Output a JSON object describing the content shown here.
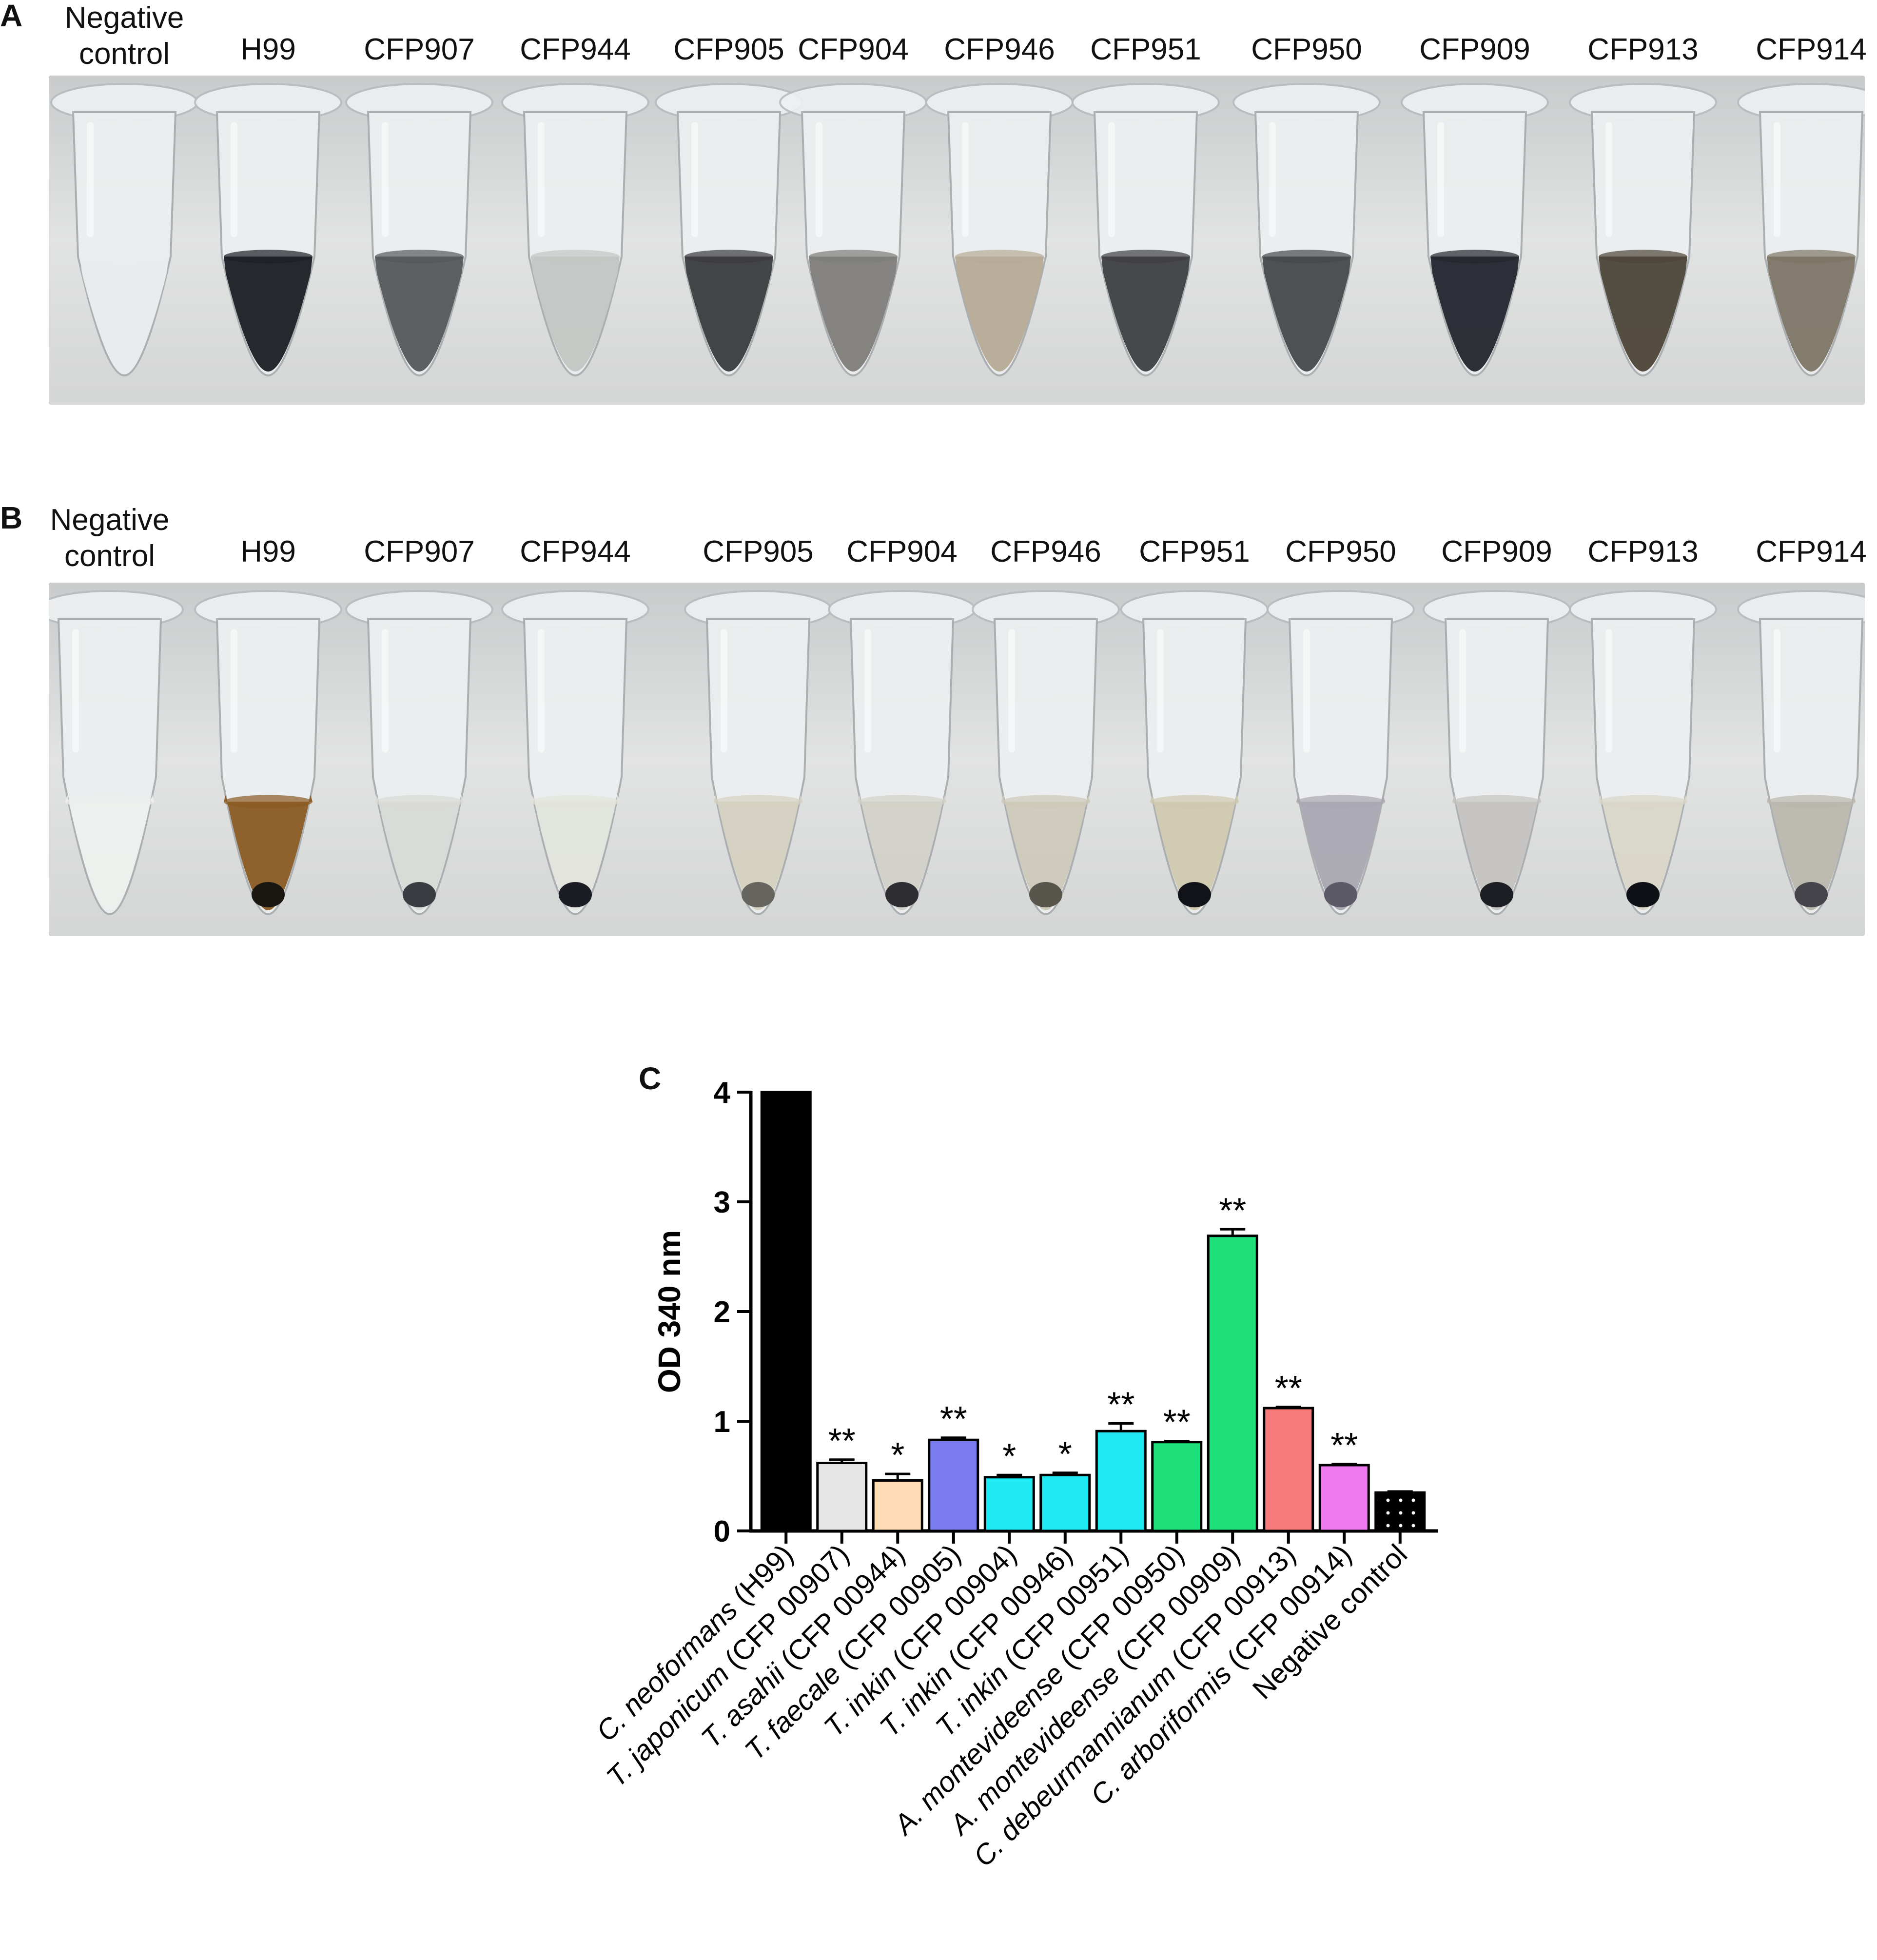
{
  "panels": [
    {
      "letter": "A",
      "lanes": [
        "Negative\ncontrol",
        "H99",
        "CFP907",
        "CFP944",
        "CFP905",
        "CFP904",
        "CFP946",
        "CFP951",
        "CFP950",
        "CFP909",
        "CFP913",
        "CFP914"
      ],
      "tube_liquid_colors": [
        "#e9ecee",
        "#1b1e23",
        "#55575a",
        "#c4c6c4",
        "#3a3b3c",
        "#7e7d7a",
        "#b5ab95",
        "#3e3f41",
        "#46484b",
        "#22252c",
        "#4c4537",
        "#7d7565"
      ]
    },
    {
      "letter": "B",
      "lanes": [
        "Negative\ncontrol",
        "H99",
        "CFP907",
        "CFP944",
        "CFP905",
        "CFP904",
        "CFP946",
        "CFP951",
        "CFP950",
        "CFP909",
        "CFP913",
        "CFP914"
      ],
      "tube_liquid_colors": [
        "#eef0ee",
        "#8a5a22",
        "#d8dad6",
        "#e2e4dc",
        "#d5d1c0",
        "#d2d1c8",
        "#cdc9b9",
        "#cfc9ae",
        "#a9a7b0",
        "#c4c3c0",
        "#d9d6c8",
        "#b9b7ad"
      ],
      "pellet_colors": [
        "",
        "#1a1712",
        "#3a3c42",
        "#1c1d24",
        "#66645e",
        "#2e2e32",
        "#58564c",
        "#121318",
        "#5d5a68",
        "#1d1e24",
        "#101116",
        "#45444a"
      ]
    }
  ],
  "chart_data": {
    "panel_letter": "C",
    "type": "bar",
    "ylabel": "OD 340 nm",
    "ylim": [
      0,
      4
    ],
    "yticks": [
      "0",
      "1",
      "2",
      "3",
      "4"
    ],
    "categories": [
      {
        "italic": "C. neoformans",
        "rest": " (H99)"
      },
      {
        "italic": "T. japonicum",
        "rest": " (CFP 00907)"
      },
      {
        "italic": "T. asahii",
        "rest": " (CFP 00944)"
      },
      {
        "italic": "T. faecale",
        "rest": " (CFP 00905)"
      },
      {
        "italic": "T. inkin",
        "rest": " (CFP 00904)"
      },
      {
        "italic": "T. inkin",
        "rest": " (CFP 00946)"
      },
      {
        "italic": "T. inkin",
        "rest": " (CFP 00951)"
      },
      {
        "italic": "A. montevideense",
        "rest": " (CFP 00950)"
      },
      {
        "italic": "A. montevideense",
        "rest": " (CFP 00909)"
      },
      {
        "italic": "C. debeurmannianum",
        "rest": " (CFP 00913)"
      },
      {
        "italic": "C. arboriformis",
        "rest": " (CFP 00914)"
      },
      {
        "italic": "",
        "rest": "Negative control"
      }
    ],
    "values": [
      4.0,
      0.62,
      0.46,
      0.83,
      0.49,
      0.51,
      0.91,
      0.81,
      2.69,
      1.12,
      0.6,
      0.35
    ],
    "errors": [
      0,
      0.03,
      0.06,
      0.02,
      0.02,
      0.02,
      0.07,
      0.01,
      0.06,
      0.01,
      0.01,
      0.01
    ],
    "significance": [
      "",
      "**",
      "*",
      "**",
      "*",
      "*",
      "**",
      "**",
      "**",
      "**",
      "**",
      ""
    ],
    "colors": [
      "#000000",
      "#e6e6e6",
      "#fddbb4",
      "#7b7bf0",
      "#1ee8f2",
      "#1ee8f2",
      "#1ee8f2",
      "#1ee07a",
      "#1ee07a",
      "#f77a7a",
      "#ef7aef",
      "#000000"
    ],
    "grid": false,
    "legend": "none"
  }
}
